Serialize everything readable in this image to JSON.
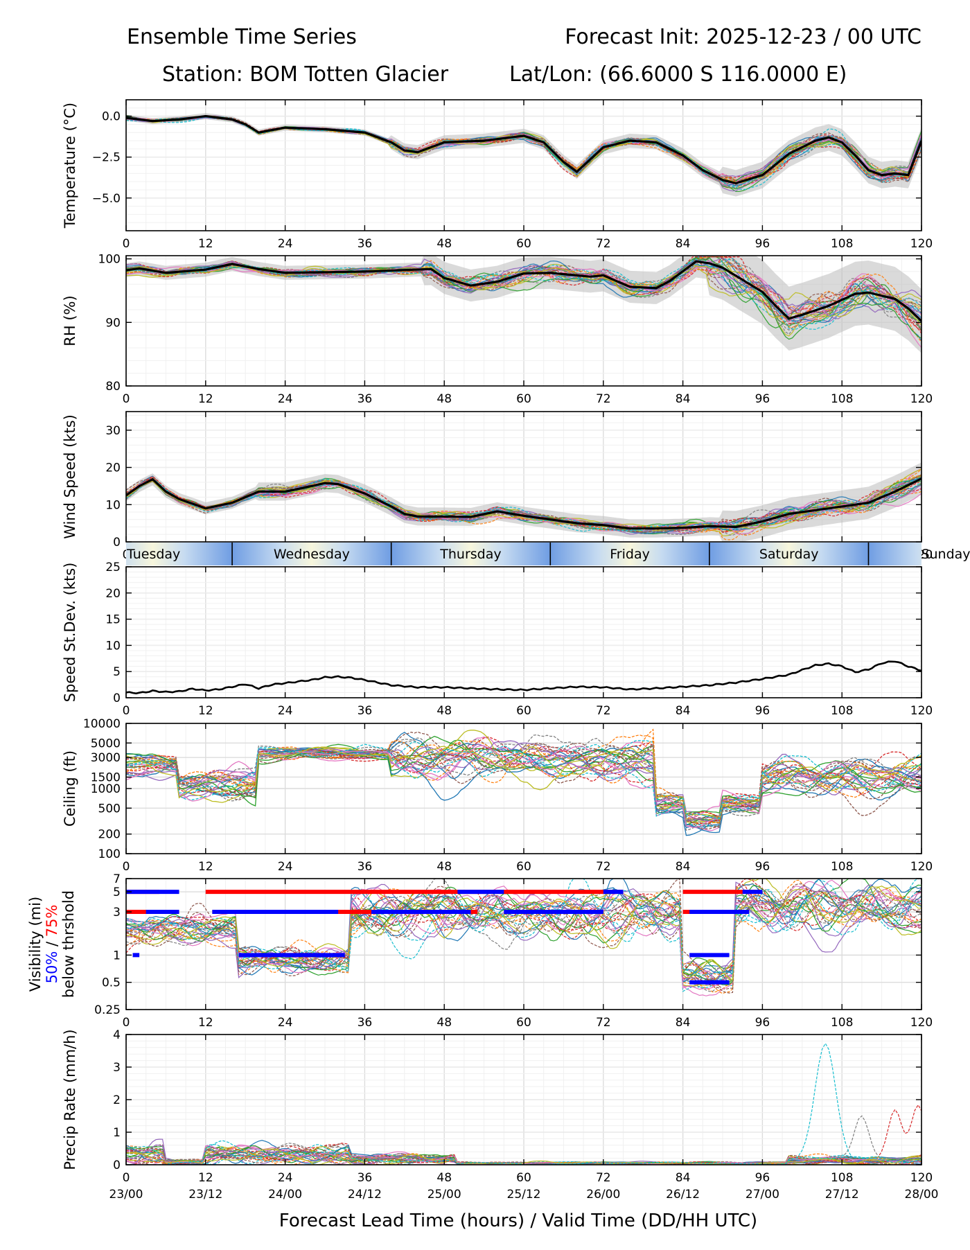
{
  "header": {
    "title_left": "Ensemble Time Series",
    "title_right": "Forecast Init: 2025-12-23 / 00 UTC",
    "station": "Station: BOM Totten Glacier",
    "latlon": "Lat/Lon: (66.6000 S 116.0000 E)"
  },
  "colors": {
    "mean": "#000000",
    "spread": "#bbbbbb",
    "vis50": "#0000ff",
    "vis75": "#ff0000",
    "members": [
      "#1f77b4",
      "#ff7f0e",
      "#2ca02c",
      "#d62728",
      "#9467bd",
      "#8c564b",
      "#e377c2",
      "#7f7f7f",
      "#bcbd22",
      "#17becf"
    ]
  },
  "xaxis": {
    "ticks": [
      0,
      12,
      24,
      36,
      48,
      60,
      72,
      84,
      96,
      108,
      120
    ],
    "tick_labels": [
      "0",
      "12",
      "24",
      "36",
      "48",
      "60",
      "72",
      "84",
      "96",
      "108",
      "120"
    ],
    "valid_labels": [
      "23/00",
      "23/12",
      "24/00",
      "24/12",
      "25/00",
      "25/12",
      "26/00",
      "26/12",
      "27/00",
      "27/12",
      "28/00"
    ],
    "label": "Forecast Lead Time (hours) / Valid Time (DD/HH UTC)",
    "range": [
      0,
      120
    ]
  },
  "day_band": {
    "days": [
      {
        "name": "Tuesday",
        "start": -8,
        "end": 16
      },
      {
        "name": "Wednesday",
        "start": 16,
        "end": 40
      },
      {
        "name": "Thursday",
        "start": 40,
        "end": 64
      },
      {
        "name": "Friday",
        "start": 64,
        "end": 88
      },
      {
        "name": "Saturday",
        "start": 88,
        "end": 112
      },
      {
        "name": "Sunday",
        "start": 112,
        "end": 136
      }
    ]
  },
  "chart_data": [
    {
      "id": "temperature",
      "type": "line",
      "ylabel": "Temperature (°C)",
      "ylim": [
        -7,
        1
      ],
      "yticks": [
        0.0,
        -2.5,
        -5.0
      ],
      "ytick_labels": [
        "0.0",
        "−2.5",
        "−5.0"
      ],
      "mean": {
        "x": [
          0,
          4,
          8,
          12,
          16,
          18,
          20,
          24,
          30,
          36,
          40,
          42,
          44,
          48,
          54,
          60,
          63,
          66,
          68,
          72,
          76,
          80,
          84,
          87,
          90,
          92,
          96,
          100,
          104,
          106,
          108,
          110,
          112,
          114,
          116,
          118,
          120
        ],
        "y": [
          -0.1,
          -0.3,
          -0.2,
          0,
          -0.2,
          -0.5,
          -1.0,
          -0.7,
          -0.8,
          -1.0,
          -1.6,
          -2.1,
          -2.2,
          -1.6,
          -1.5,
          -1.2,
          -1.6,
          -2.8,
          -3.4,
          -1.9,
          -1.5,
          -1.6,
          -2.4,
          -3.3,
          -3.9,
          -4.1,
          -3.6,
          -2.3,
          -1.5,
          -1.3,
          -1.6,
          -2.4,
          -3.3,
          -3.6,
          -3.5,
          -3.6,
          -1.5
        ]
      },
      "spread": 0.6
    },
    {
      "id": "rh",
      "type": "line",
      "ylabel": "RH (%)",
      "ylim": [
        80,
        100.5
      ],
      "yticks": [
        80,
        90,
        100
      ],
      "ytick_labels": [
        "80",
        "90",
        "100"
      ],
      "mean": {
        "x": [
          0,
          2,
          6,
          12,
          16,
          20,
          24,
          36,
          46,
          48,
          52,
          56,
          60,
          64,
          70,
          72,
          76,
          80,
          82,
          86,
          88,
          90,
          96,
          98,
          100,
          102,
          106,
          110,
          112,
          116,
          118,
          120
        ],
        "y": [
          98.2,
          98.5,
          97.8,
          98.3,
          99.2,
          98.4,
          97.8,
          98.0,
          98.4,
          97.0,
          95.8,
          96.4,
          97.7,
          97.8,
          97.2,
          97.4,
          95.6,
          95.4,
          96.5,
          99.6,
          99.3,
          98.6,
          94.8,
          92.6,
          90.6,
          91.2,
          92.6,
          94.5,
          94.7,
          93.7,
          92.2,
          90.2
        ]
      },
      "spread": 3.5
    },
    {
      "id": "wind_speed",
      "type": "line",
      "ylabel": "Wind Speed (kts)",
      "ylim": [
        0,
        35
      ],
      "yticks": [
        0,
        10,
        20,
        30
      ],
      "ytick_labels": [
        "0",
        "10",
        "20",
        "30"
      ],
      "mean": {
        "x": [
          0,
          2,
          4,
          6,
          8,
          12,
          16,
          20,
          24,
          28,
          30,
          32,
          36,
          40,
          42,
          44,
          48,
          52,
          56,
          60,
          64,
          68,
          72,
          76,
          80,
          84,
          88,
          92,
          96,
          100,
          104,
          108,
          112,
          116,
          120
        ],
        "y": [
          12.5,
          15.0,
          16.8,
          13.5,
          11.5,
          9.0,
          10.5,
          13.5,
          13.5,
          15.0,
          15.8,
          15.5,
          13.0,
          9.5,
          7.5,
          6.8,
          6.8,
          6.7,
          8.2,
          7.0,
          6.0,
          5.0,
          4.5,
          3.6,
          3.6,
          3.8,
          4.2,
          4.0,
          5.5,
          7.5,
          8.5,
          9.5,
          10.5,
          13.5,
          17.0
        ]
      },
      "spread": 3.0
    },
    {
      "id": "speed_stdev",
      "type": "line",
      "ylabel": "Speed St.Dev. (kts)",
      "ylim": [
        0,
        25
      ],
      "yticks": [
        0,
        5,
        10,
        15,
        20,
        25
      ],
      "ytick_labels": [
        "0",
        "5",
        "10",
        "15",
        "20",
        "25"
      ],
      "mean": {
        "x": [
          0,
          2,
          4,
          6,
          8,
          10,
          12,
          14,
          16,
          18,
          20,
          22,
          24,
          28,
          30,
          32,
          34,
          36,
          40,
          44,
          48,
          52,
          56,
          60,
          64,
          68,
          72,
          76,
          80,
          84,
          88,
          92,
          96,
          100,
          104,
          106,
          108,
          110,
          112,
          114,
          116,
          118,
          120
        ],
        "y": [
          1.0,
          0.9,
          1.3,
          1.1,
          1.2,
          1.7,
          1.4,
          1.6,
          2.1,
          2.6,
          1.8,
          2.5,
          2.8,
          3.4,
          3.9,
          4.0,
          3.8,
          3.4,
          2.4,
          2.0,
          2.0,
          1.8,
          1.6,
          1.5,
          1.8,
          2.1,
          2.0,
          1.6,
          1.8,
          2.1,
          2.4,
          2.9,
          3.6,
          4.4,
          6.2,
          6.5,
          6.0,
          4.9,
          5.4,
          6.6,
          7.0,
          6.0,
          5.2
        ]
      }
    },
    {
      "id": "ceiling",
      "type": "line",
      "ylabel": "Ceiling (ft)",
      "yscale": "log",
      "ylim": [
        100,
        10000
      ],
      "yticks": [
        100,
        200,
        500,
        1000,
        1500,
        3000,
        5000,
        10000
      ],
      "ytick_labels": [
        "100",
        "200",
        "500",
        "1000",
        "1500",
        "3000",
        "5000",
        "10000"
      ]
    },
    {
      "id": "visibility",
      "type": "line",
      "ylabel": "Visibility (mi)",
      "ylabel_50": "50%",
      "ylabel_sep": " / ",
      "ylabel_75": "75%",
      "ylabel_below": "below thrshold",
      "yscale": "log",
      "ylim": [
        0.25,
        7
      ],
      "yticks": [
        0.25,
        0.5,
        1,
        3,
        5,
        7
      ],
      "ytick_labels": [
        "0.25",
        "0.5",
        "1",
        "3",
        "5",
        "7"
      ],
      "threshold_bars": {
        "p75": [
          {
            "level": 5,
            "segments": [
              [
                0,
                5
              ],
              [
                12,
                75
              ],
              [
                84,
                96
              ]
            ]
          },
          {
            "level": 3,
            "segments": [
              [
                0,
                8
              ],
              [
                13,
                53
              ],
              [
                84,
                94
              ]
            ]
          },
          {
            "level": 1,
            "segments": [
              [
                24,
                30
              ]
            ]
          }
        ],
        "p50": [
          {
            "level": 5,
            "segments": [
              [
                0,
                8
              ],
              [
                50,
                57
              ],
              [
                72,
                75
              ],
              [
                93,
                96
              ]
            ]
          },
          {
            "level": 3,
            "segments": [
              [
                3,
                8
              ],
              [
                13,
                32
              ],
              [
                37,
                52
              ],
              [
                57,
                72
              ],
              [
                85,
                94
              ]
            ]
          },
          {
            "level": 1,
            "segments": [
              [
                1,
                2
              ],
              [
                17,
                33
              ],
              [
                85,
                91
              ]
            ]
          },
          {
            "level": 0.5,
            "segments": [
              [
                85,
                91
              ]
            ]
          }
        ]
      }
    },
    {
      "id": "precip_rate",
      "type": "line",
      "ylabel": "Precip Rate (mm/h)",
      "ylim": [
        0,
        4
      ],
      "yticks": [
        0,
        1,
        2,
        3,
        4
      ],
      "ytick_labels": [
        "0",
        "1",
        "2",
        "3",
        "4"
      ],
      "peaks": [
        {
          "x": 105.5,
          "y": 3.5,
          "member": 9
        },
        {
          "x": 111,
          "y": 1.3,
          "member": 7
        },
        {
          "x": 116,
          "y": 1.6,
          "member": 3
        },
        {
          "x": 119.5,
          "y": 1.7,
          "member": 3
        }
      ]
    }
  ]
}
